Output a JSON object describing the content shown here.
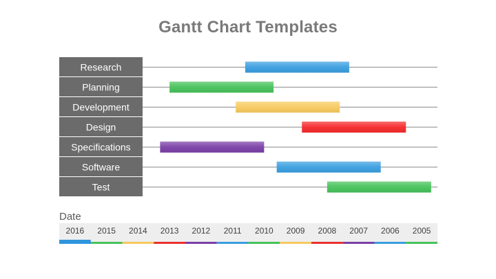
{
  "title": "Gantt Chart Templates",
  "date_label": "Date",
  "colors": {
    "label_bg": "#6b6b6b",
    "timeline_bg": "#eeeeee",
    "line": "#8c8c8c"
  },
  "chart_data": {
    "type": "bar",
    "subtype": "gantt",
    "title": "Gantt Chart Templates",
    "xlabel": "Date",
    "x_ticks": [
      "2016",
      "2015",
      "2014",
      "2013",
      "2012",
      "2011",
      "2010",
      "2009",
      "2008",
      "2007",
      "2006",
      "2005"
    ],
    "x_range": [
      0,
      12
    ],
    "tasks": [
      {
        "name": "Research",
        "start": 5.9,
        "end": 9.2,
        "color": "#3a9ee0"
      },
      {
        "name": "Planning",
        "start": 3.5,
        "end": 6.8,
        "color": "#46c25a"
      },
      {
        "name": "Development",
        "start": 5.6,
        "end": 8.9,
        "color": "#f7c95e"
      },
      {
        "name": "Design",
        "start": 7.7,
        "end": 11.0,
        "color": "#f5282a"
      },
      {
        "name": "Specifications",
        "start": 3.2,
        "end": 6.5,
        "color": "#7a3fa6"
      },
      {
        "name": "Software",
        "start": 6.9,
        "end": 10.2,
        "color": "#3a9ee0"
      },
      {
        "name": "Test",
        "start": 8.5,
        "end": 11.8,
        "color": "#46c25a"
      }
    ],
    "tick_underline_colors": [
      "#2f95dd",
      "#46c25a",
      "#f7c95e",
      "#e8312f",
      "#7a3fa6",
      "#3a9ee0",
      "#46c25a",
      "#f7c95e",
      "#e8312f",
      "#7a3fa6",
      "#3a9ee0",
      "#46c25a"
    ]
  }
}
